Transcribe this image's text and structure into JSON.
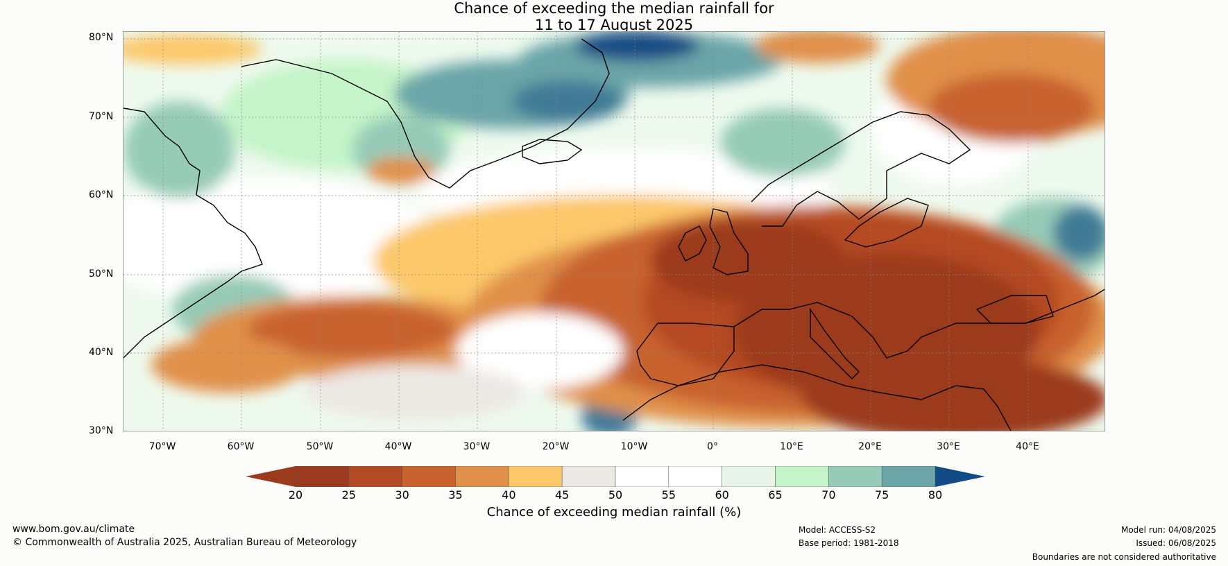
{
  "title": {
    "line1": "Chance of exceeding the median rainfall for",
    "line2": "11 to 17 August 2025"
  },
  "map": {
    "lat_labels": [
      "80°N",
      "70°N",
      "60°N",
      "50°N",
      "40°N",
      "30°N"
    ],
    "lon_labels": [
      "70°W",
      "60°W",
      "50°W",
      "40°W",
      "30°W",
      "20°W",
      "10°W",
      "0°",
      "10°E",
      "20°E",
      "30°E",
      "40°E"
    ]
  },
  "colorbar": {
    "ticks": [
      "20",
      "25",
      "30",
      "35",
      "40",
      "45",
      "50",
      "55",
      "60",
      "65",
      "70",
      "75",
      "80"
    ],
    "colors": [
      "#9b3a1f",
      "#b44a24",
      "#c8622e",
      "#e0904a",
      "#fcc86a",
      "#ece8e4",
      "#ffffff",
      "#ffffff",
      "#e6f5e6",
      "#c4f4c8",
      "#96cbb8",
      "#6ba5a8",
      "#417a96"
    ],
    "under_color": "#9b3a1f",
    "over_color": "#134c84",
    "label": "Chance of exceeding median rainfall (%)"
  },
  "footer": {
    "website": "www.bom.gov.au/climate",
    "copyright": "© Commonwealth of Australia 2025, Australian Bureau of Meteorology",
    "model": "Model: ACCESS-S2",
    "base_period": "Base period: 1981-2018",
    "model_run": "Model run: 04/08/2025",
    "issued": "Issued: 06/08/2025",
    "disclaimer": "Boundaries are not considered authoritative"
  }
}
